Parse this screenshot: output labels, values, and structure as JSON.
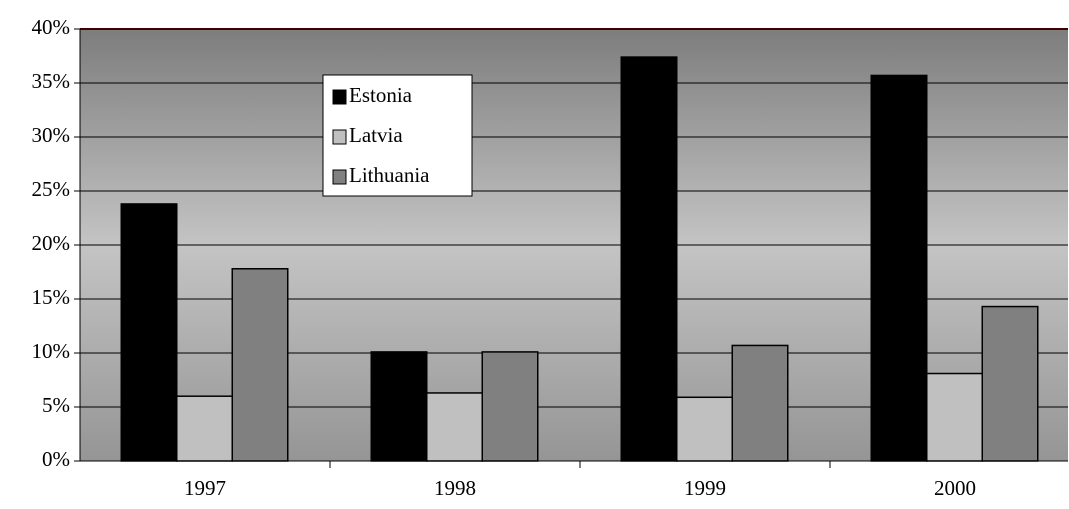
{
  "chart_data": {
    "type": "bar",
    "categories": [
      "1997",
      "1998",
      "1999",
      "2000"
    ],
    "series": [
      {
        "name": "Estonia",
        "color": "#000000",
        "values": [
          23.8,
          10.1,
          37.4,
          35.7
        ]
      },
      {
        "name": "Latvia",
        "color": "#c0c0c0",
        "values": [
          6.0,
          6.3,
          5.9,
          8.1
        ]
      },
      {
        "name": "Lithuania",
        "color": "#808080",
        "values": [
          17.8,
          10.1,
          10.7,
          14.3
        ]
      }
    ],
    "ylim": [
      0,
      40
    ],
    "yticks": [
      {
        "value": 0,
        "label": "0%"
      },
      {
        "value": 5,
        "label": "5%"
      },
      {
        "value": 10,
        "label": "10%"
      },
      {
        "value": 15,
        "label": "15%"
      },
      {
        "value": 20,
        "label": "20%"
      },
      {
        "value": 25,
        "label": "25%"
      },
      {
        "value": 30,
        "label": "30%"
      },
      {
        "value": 35,
        "label": "35%"
      },
      {
        "value": 40,
        "label": "40%"
      }
    ],
    "grid": true
  }
}
